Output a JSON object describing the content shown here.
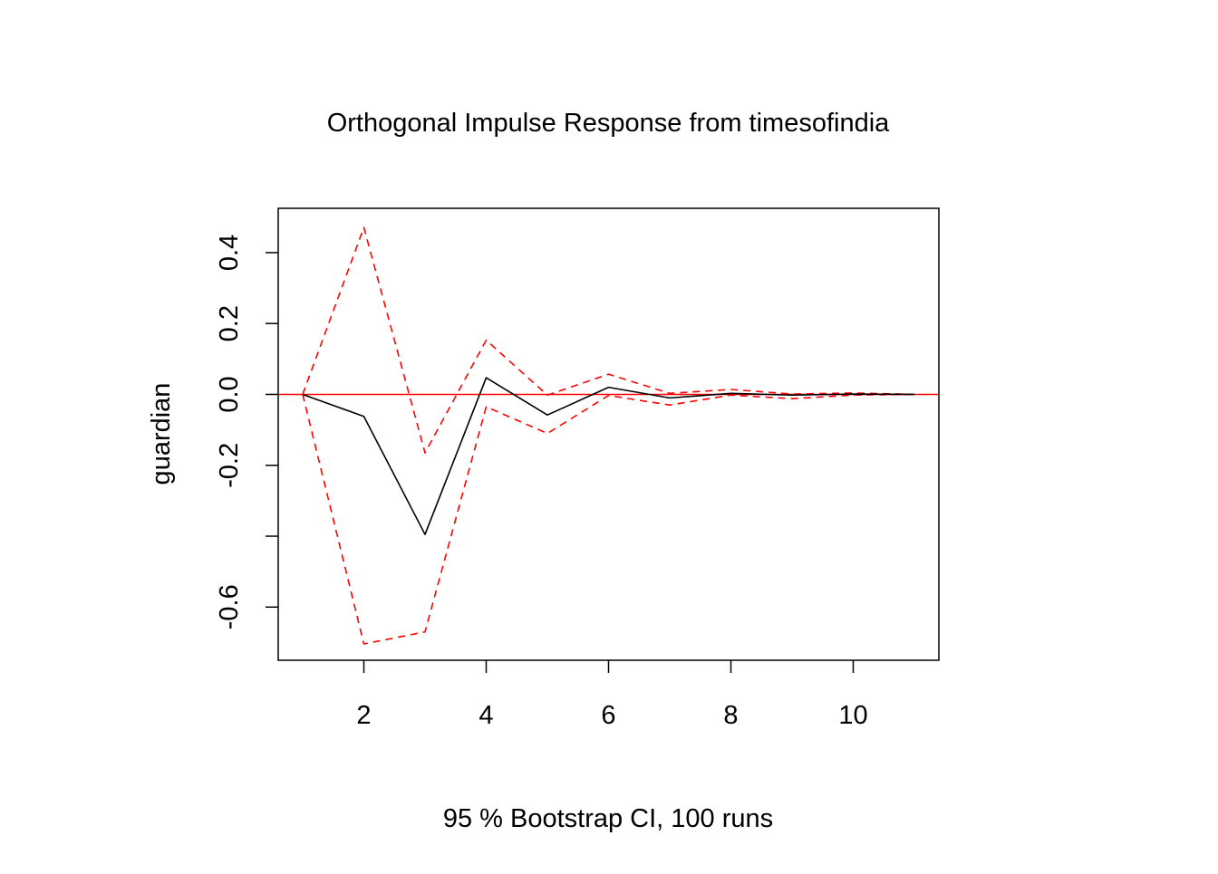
{
  "chart_data": {
    "type": "line",
    "title": "Orthogonal Impulse Response from timesofindia",
    "xlabel": "95 % Bootstrap CI,  100 runs",
    "ylabel": "guardian",
    "xlim": [
      0.6,
      11.4
    ],
    "ylim": [
      -0.75,
      0.525
    ],
    "x_ticks": [
      2,
      4,
      6,
      8,
      10
    ],
    "x_tick_labels": [
      "2",
      "4",
      "6",
      "8",
      "10"
    ],
    "y_ticks": [
      -0.6,
      -0.4,
      -0.2,
      0.0,
      0.2,
      0.4
    ],
    "y_tick_labels": [
      "-0.6",
      "",
      "-0.2",
      "0.0",
      "0.2",
      "0.4"
    ],
    "grid": false,
    "legend": "none",
    "x": [
      1,
      2,
      3,
      4,
      5,
      6,
      7,
      8,
      9,
      10,
      11
    ],
    "series": [
      {
        "values": [
          0.0,
          -0.062,
          -0.395,
          0.047,
          -0.058,
          0.02,
          -0.01,
          0.003,
          -0.002,
          0.001,
          0.0
        ],
        "color": "#000000",
        "dash": "solid"
      },
      {
        "values": [
          0.0,
          0.471,
          -0.165,
          0.153,
          -0.002,
          0.057,
          0.003,
          0.014,
          0.001,
          0.004,
          0.0
        ],
        "color": "#ff0000",
        "dash": "dashed"
      },
      {
        "values": [
          0.0,
          -0.704,
          -0.67,
          -0.035,
          -0.11,
          -0.003,
          -0.03,
          -0.002,
          -0.012,
          -0.002,
          0.0
        ],
        "color": "#ff0000",
        "dash": "dashed"
      }
    ],
    "reference_line": {
      "y": 0.0,
      "color": "#ff0000"
    }
  }
}
